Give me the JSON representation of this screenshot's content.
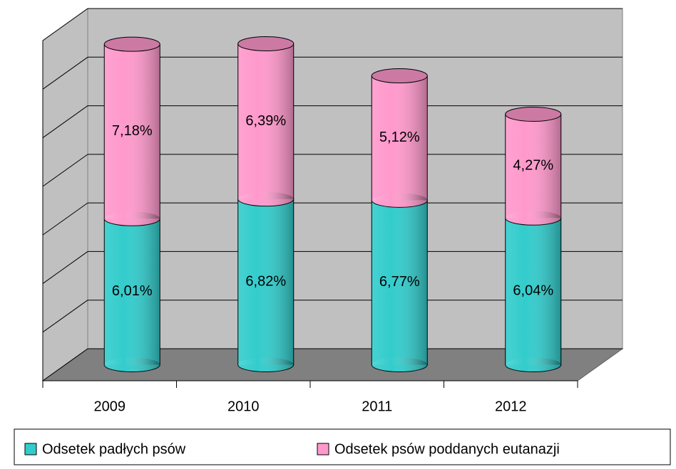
{
  "chart_data": {
    "type": "stacked-cylinder",
    "categories": [
      "2009",
      "2010",
      "2011",
      "2012"
    ],
    "series": [
      {
        "name": "Odsetek padłych psów",
        "color": "#33cccc",
        "values": [
          6.01,
          6.82,
          6.77,
          6.04
        ],
        "value_labels": [
          "6,01%",
          "6,82%",
          "6,77%",
          "6,04%"
        ]
      },
      {
        "name": "Odsetek psów poddanych eutanazji",
        "color": "#ff99cc",
        "values": [
          7.18,
          6.39,
          5.12,
          4.27
        ],
        "value_labels": [
          "7,18%",
          "6,39%",
          "5,12%",
          "4,27%"
        ]
      }
    ],
    "ylim": [
      0,
      14
    ],
    "yticks": [
      0,
      2,
      4,
      6,
      8,
      10,
      12,
      14
    ],
    "grid": true,
    "legend": "bottom"
  }
}
